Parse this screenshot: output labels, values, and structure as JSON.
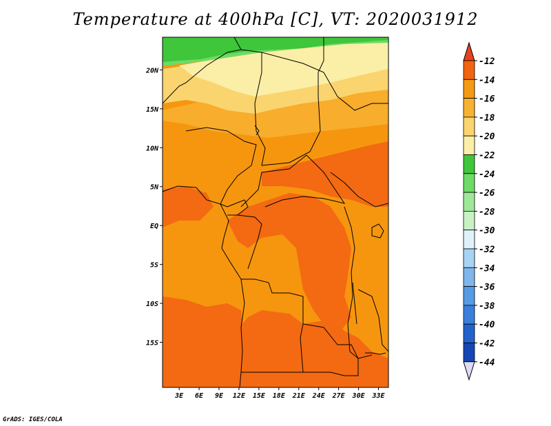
{
  "title": "Temperature at 400hPa [C], VT: 2020031912",
  "credit": "GrADS: IGES/COLA",
  "lat_labels": [
    "20N",
    "15N",
    "10N",
    "5N",
    "EQ",
    "5S",
    "10S",
    "15S"
  ],
  "lat_values": [
    20,
    15,
    10,
    5,
    0,
    -5,
    -10,
    -15
  ],
  "lon_labels": [
    "3E",
    "6E",
    "9E",
    "12E",
    "15E",
    "18E",
    "21E",
    "24E",
    "27E",
    "30E",
    "33E"
  ],
  "lon_values": [
    3,
    6,
    9,
    12,
    15,
    18,
    21,
    24,
    27,
    30,
    33
  ],
  "colorbar": {
    "labels": [
      "-12",
      "-14",
      "-16",
      "-18",
      "-20",
      "-22",
      "-24",
      "-26",
      "-28",
      "-30",
      "-32",
      "-34",
      "-36",
      "-38",
      "-40",
      "-42",
      "-44"
    ],
    "colors": [
      "#e8431e",
      "#f2640f",
      "#f59a14",
      "#f8b233",
      "#fad46e",
      "#fbeea6",
      "#3fc63a",
      "#6ddb66",
      "#9ee89a",
      "#c8f2c6",
      "#dff2fa",
      "#a9d3f3",
      "#7fb6ec",
      "#569be5",
      "#3a7fdc",
      "#2362cd",
      "#1447b5",
      "#0a1f7a"
    ],
    "top_arrow_color": "#e8431e",
    "bottom_arrow_color": "#dcdcf6"
  },
  "field_colors": {
    "warm": "#f36a12",
    "orange": "#f6960f",
    "lightorange": "#f8ad2c",
    "yellow": "#fad46e",
    "paleyellow": "#fbeea6",
    "green": "#3fc63a",
    "lightgreen": "#6ddb66"
  }
}
